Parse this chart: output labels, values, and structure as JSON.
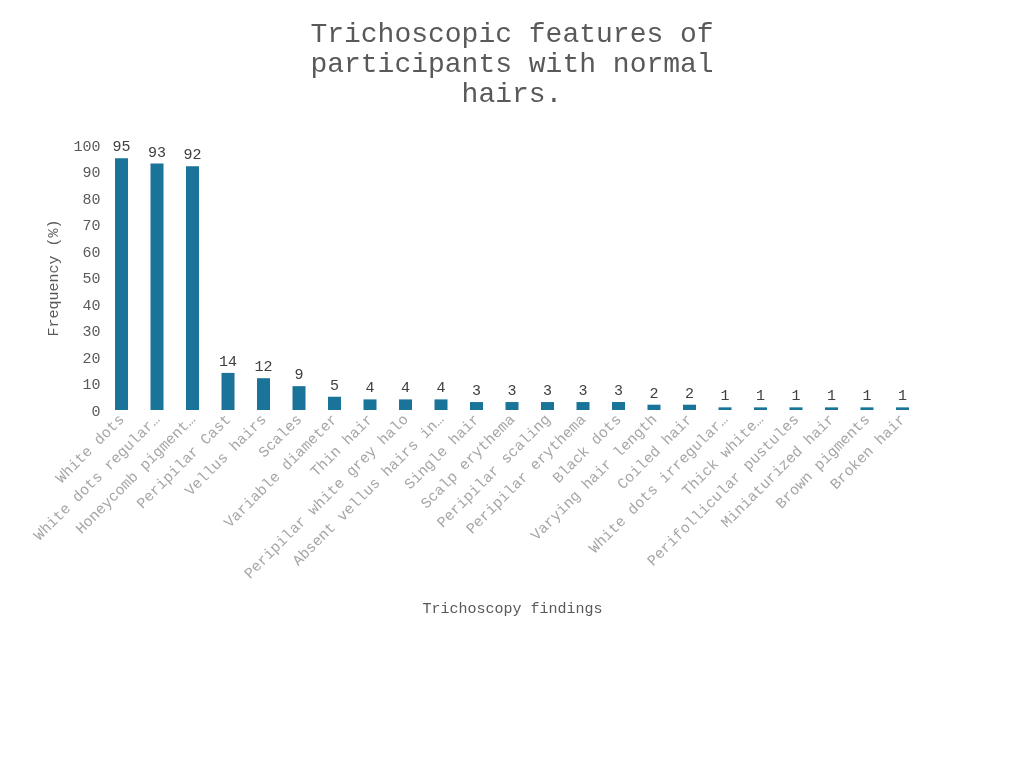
{
  "chart_data": {
    "type": "bar",
    "title": "Trichoscopic features of participants with normal hairs.",
    "xlabel": "Trichoscopy findings",
    "ylabel": "Frequency (%)",
    "categories": [
      "White dots",
      "White dots regular…",
      "Honeycomb pigment…",
      "Peripilar Cast",
      "Vellus hairs",
      "Scales",
      "Variable diameter",
      "Thin hair",
      "Peripilar white grey halo",
      "Absent vellus hairs in…",
      "Single hair",
      "Scalp erythema",
      "Peripilar scaling",
      "Peripilar erythema",
      "Black dots",
      "Varying hair length",
      "Coiled hair",
      "White dots irregular…",
      "Thick white…",
      "Perifollicular pustules",
      "Miniaturized hair",
      "Brown pigments",
      "Broken hair"
    ],
    "values": [
      95,
      93,
      92,
      14,
      12,
      9,
      5,
      4,
      4,
      4,
      3,
      3,
      3,
      3,
      3,
      2,
      2,
      1,
      1,
      1,
      1,
      1,
      1
    ],
    "color": "#1a7399",
    "ylim": [
      0,
      100
    ],
    "yticks": [
      0,
      10,
      20,
      30,
      40,
      50,
      60,
      70,
      80,
      90,
      100
    ],
    "data_labels": true,
    "grid": false
  }
}
